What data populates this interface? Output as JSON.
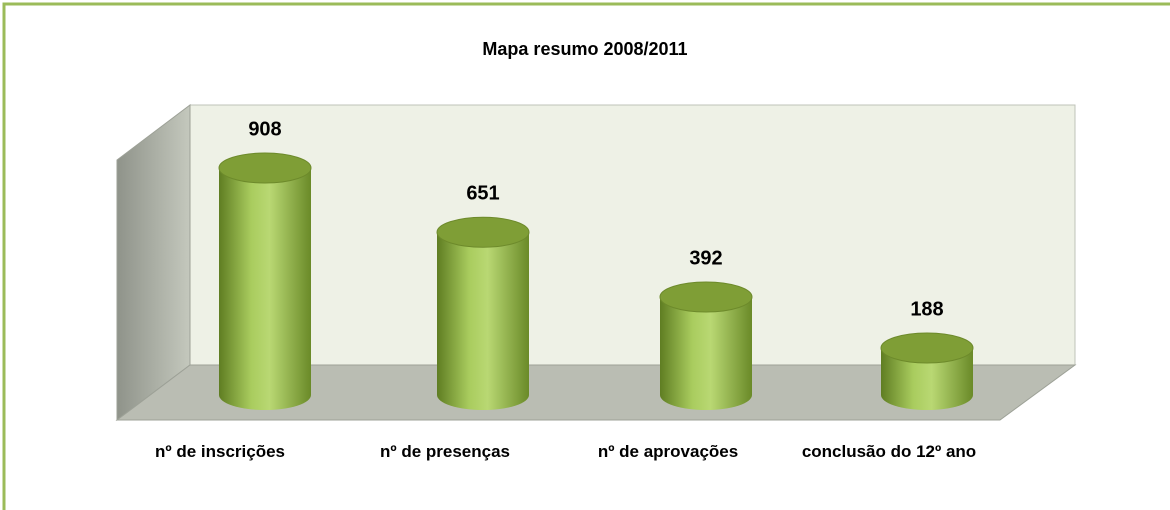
{
  "chart_data": {
    "type": "bar",
    "title": "Mapa resumo 2008/2011",
    "categories": [
      "nº de inscrições",
      "nº de presenças",
      "nº de aprovações",
      "conclusão do 12º ano"
    ],
    "values": [
      908,
      651,
      392,
      188
    ],
    "color": "#9bbb59"
  }
}
